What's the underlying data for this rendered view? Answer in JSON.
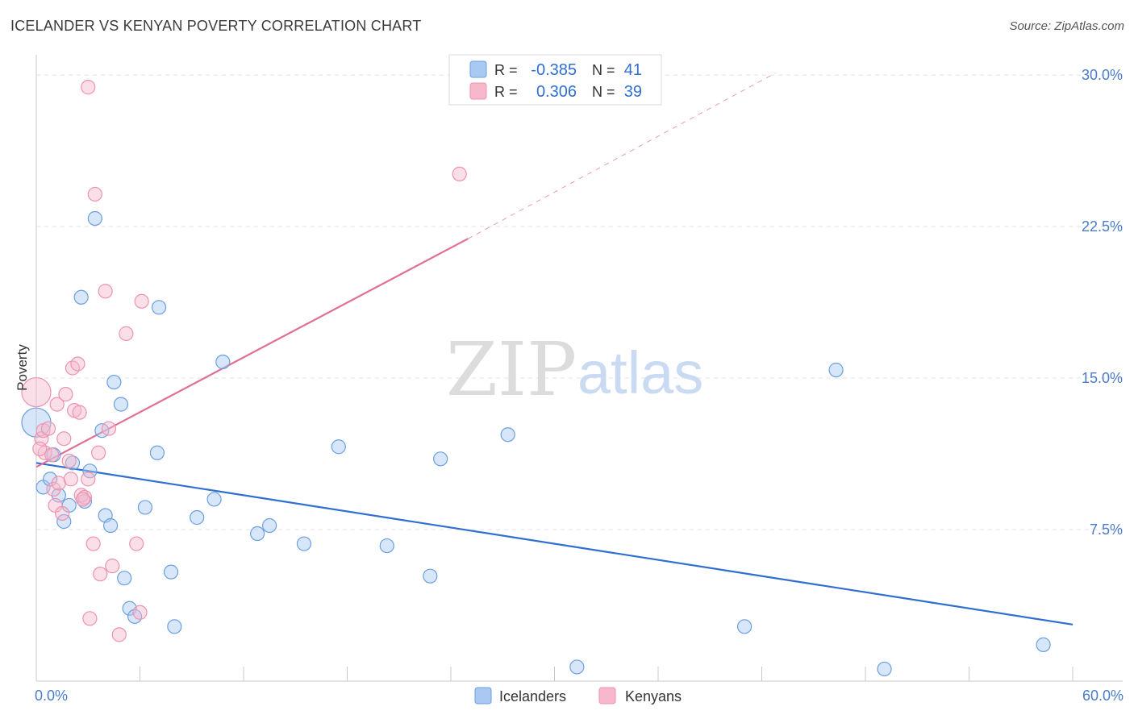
{
  "header": {
    "title": "ICELANDER VS KENYAN POVERTY CORRELATION CHART",
    "source": "Source: ZipAtlas.com"
  },
  "watermark": {
    "zip": "ZIP",
    "atlas": "atlas"
  },
  "stats_legend": {
    "rows": [
      {
        "r_label": "R =",
        "r_value": "-0.385",
        "n_label": "N =",
        "n_value": "41",
        "color": "#a9c8f2"
      },
      {
        "r_label": "R =",
        "r_value": "0.306",
        "n_label": "N =",
        "n_value": "39",
        "color": "#f7b8cc"
      }
    ]
  },
  "chart_data": {
    "type": "scatter",
    "title": "ICELANDER VS KENYAN POVERTY CORRELATION CHART",
    "xlabel": "",
    "ylabel": "Poverty",
    "xlim": [
      0,
      60
    ],
    "ylim": [
      0,
      31
    ],
    "x_tick_labels": [
      "0.0%",
      "60.0%"
    ],
    "y_ticks": [
      7.5,
      15.0,
      22.5,
      30.0
    ],
    "y_tick_labels": [
      "7.5%",
      "15.0%",
      "22.5%",
      "30.0%"
    ],
    "grid": true,
    "legend": {
      "placement": "bottom-center",
      "entries": [
        "Icelanders",
        "Kenyans"
      ]
    },
    "series": [
      {
        "name": "Icelanders",
        "color": "#6a9fe0",
        "fill": "#a9c8f2",
        "trend_color": "#2f6fd0",
        "trend": {
          "x": [
            0,
            60
          ],
          "y": [
            10.8,
            2.8
          ]
        },
        "points": [
          {
            "x": 0.0,
            "y": 12.8,
            "big": true
          },
          {
            "x": 0.4,
            "y": 9.6
          },
          {
            "x": 0.8,
            "y": 10.0
          },
          {
            "x": 1.0,
            "y": 11.2
          },
          {
            "x": 1.3,
            "y": 9.2
          },
          {
            "x": 1.6,
            "y": 7.9
          },
          {
            "x": 1.9,
            "y": 8.7
          },
          {
            "x": 2.1,
            "y": 10.8
          },
          {
            "x": 2.8,
            "y": 8.9
          },
          {
            "x": 3.1,
            "y": 10.4
          },
          {
            "x": 2.6,
            "y": 19.0
          },
          {
            "x": 3.4,
            "y": 22.9
          },
          {
            "x": 3.8,
            "y": 12.4
          },
          {
            "x": 4.0,
            "y": 8.2
          },
          {
            "x": 4.3,
            "y": 7.7
          },
          {
            "x": 4.5,
            "y": 14.8
          },
          {
            "x": 4.9,
            "y": 13.7
          },
          {
            "x": 5.1,
            "y": 5.1
          },
          {
            "x": 5.4,
            "y": 3.6
          },
          {
            "x": 5.7,
            "y": 3.2
          },
          {
            "x": 6.3,
            "y": 8.6
          },
          {
            "x": 7.0,
            "y": 11.3
          },
          {
            "x": 7.1,
            "y": 18.5
          },
          {
            "x": 7.8,
            "y": 5.4
          },
          {
            "x": 8.0,
            "y": 2.7
          },
          {
            "x": 9.3,
            "y": 8.1
          },
          {
            "x": 10.3,
            "y": 9.0
          },
          {
            "x": 10.8,
            "y": 15.8
          },
          {
            "x": 12.8,
            "y": 7.3
          },
          {
            "x": 13.5,
            "y": 7.7
          },
          {
            "x": 15.5,
            "y": 6.8
          },
          {
            "x": 17.5,
            "y": 11.6
          },
          {
            "x": 20.3,
            "y": 6.7
          },
          {
            "x": 22.8,
            "y": 5.2
          },
          {
            "x": 23.4,
            "y": 11.0
          },
          {
            "x": 27.3,
            "y": 12.2
          },
          {
            "x": 31.3,
            "y": 0.7
          },
          {
            "x": 41.0,
            "y": 2.7
          },
          {
            "x": 46.3,
            "y": 15.4
          },
          {
            "x": 49.1,
            "y": 0.6
          },
          {
            "x": 58.3,
            "y": 1.8
          }
        ]
      },
      {
        "name": "Kenyans",
        "color": "#ec93ae",
        "fill": "#f7b8cc",
        "trend_color": "#e06f97",
        "trend": {
          "x": [
            0,
            25.0
          ],
          "y": [
            10.6,
            21.9
          ]
        },
        "trend_dashed_to": {
          "x": 42.8,
          "y": 30.1
        },
        "points": [
          {
            "x": 0.0,
            "y": 14.3,
            "big": true
          },
          {
            "x": 0.3,
            "y": 12.0
          },
          {
            "x": 0.4,
            "y": 12.4
          },
          {
            "x": 0.5,
            "y": 11.3
          },
          {
            "x": 0.7,
            "y": 12.5
          },
          {
            "x": 1.0,
            "y": 9.5
          },
          {
            "x": 1.1,
            "y": 8.7
          },
          {
            "x": 1.2,
            "y": 13.7
          },
          {
            "x": 1.3,
            "y": 9.8
          },
          {
            "x": 1.5,
            "y": 8.3
          },
          {
            "x": 1.6,
            "y": 12.0
          },
          {
            "x": 1.7,
            "y": 14.2
          },
          {
            "x": 1.9,
            "y": 10.9
          },
          {
            "x": 2.0,
            "y": 10.0
          },
          {
            "x": 2.1,
            "y": 15.5
          },
          {
            "x": 2.2,
            "y": 13.4
          },
          {
            "x": 2.4,
            "y": 15.7
          },
          {
            "x": 2.5,
            "y": 13.3
          },
          {
            "x": 2.6,
            "y": 9.2
          },
          {
            "x": 2.8,
            "y": 9.1
          },
          {
            "x": 3.0,
            "y": 10.0
          },
          {
            "x": 3.0,
            "y": 29.4
          },
          {
            "x": 3.1,
            "y": 3.1
          },
          {
            "x": 3.3,
            "y": 6.8
          },
          {
            "x": 3.4,
            "y": 24.1
          },
          {
            "x": 3.6,
            "y": 11.3
          },
          {
            "x": 3.7,
            "y": 5.3
          },
          {
            "x": 4.0,
            "y": 19.3
          },
          {
            "x": 4.2,
            "y": 12.5
          },
          {
            "x": 4.4,
            "y": 5.7
          },
          {
            "x": 4.8,
            "y": 2.3
          },
          {
            "x": 5.2,
            "y": 17.2
          },
          {
            "x": 5.8,
            "y": 6.8
          },
          {
            "x": 6.0,
            "y": 3.4
          },
          {
            "x": 6.1,
            "y": 18.8
          },
          {
            "x": 24.5,
            "y": 25.1
          },
          {
            "x": 0.2,
            "y": 11.5
          },
          {
            "x": 0.9,
            "y": 11.2
          },
          {
            "x": 2.7,
            "y": 9.0
          }
        ]
      }
    ]
  }
}
